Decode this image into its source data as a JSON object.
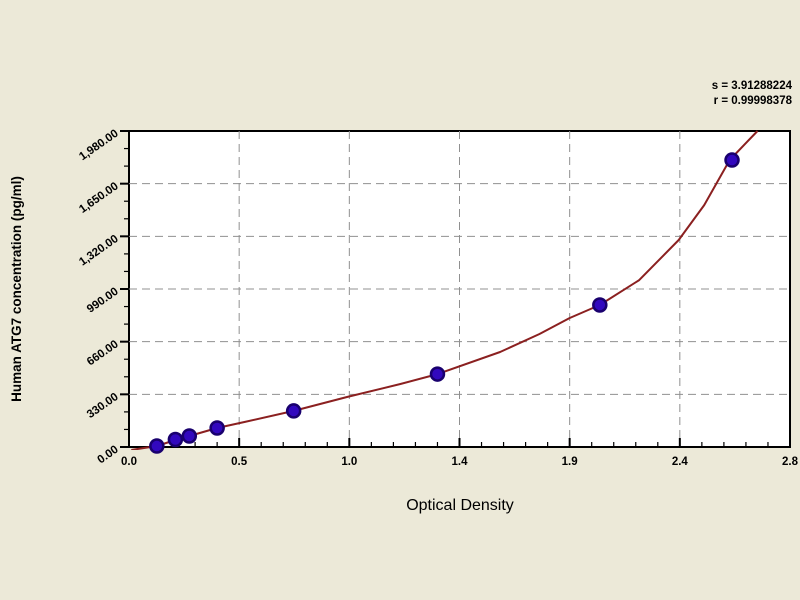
{
  "chart_data": {
    "type": "scatter",
    "title": "",
    "xlabel": "Optical Density",
    "ylabel": "Human ATG7 concentration (pg/ml)",
    "legend": "none",
    "grid": "dashed gray gridlines at every major tick, both axes",
    "stats": {
      "s_label": "s = 3.91288224",
      "r_label": "r = 0.99998378"
    },
    "xlim": [
      0,
      2.85
    ],
    "ylim": [
      0,
      1980
    ],
    "x_major_values": [
      0,
      0.475,
      0.95,
      1.425,
      1.9,
      2.375,
      2.85
    ],
    "x_tick_labels": [
      "0.0",
      "0.5",
      "1.0",
      "1.4",
      "1.9",
      "2.4",
      "2.8"
    ],
    "x_minor_step": 0.095,
    "y_major_values": [
      0,
      330,
      660,
      990,
      1320,
      1650,
      1980
    ],
    "y_tick_labels": [
      "0.00",
      "330.00",
      "660.00",
      "990.00",
      "1,320.00",
      "1,650.00",
      "1,980.00"
    ],
    "y_minor_step": 110,
    "series": [
      {
        "name": "standard-points",
        "type": "scatter",
        "points": [
          {
            "od": 0.12,
            "conc": 6
          },
          {
            "od": 0.2,
            "conc": 47
          },
          {
            "od": 0.26,
            "conc": 69
          },
          {
            "od": 0.38,
            "conc": 119
          },
          {
            "od": 0.71,
            "conc": 226
          },
          {
            "od": 1.33,
            "conc": 457
          },
          {
            "od": 2.03,
            "conc": 890
          },
          {
            "od": 2.6,
            "conc": 1798
          }
        ]
      },
      {
        "name": "fitted-curve",
        "type": "line",
        "points": [
          [
            0.01,
            -19
          ],
          [
            0.12,
            6
          ],
          [
            0.2,
            44
          ],
          [
            0.26,
            69
          ],
          [
            0.38,
            119
          ],
          [
            0.5,
            157
          ],
          [
            0.71,
            226
          ],
          [
            0.94,
            313
          ],
          [
            1.17,
            395
          ],
          [
            1.33,
            457
          ],
          [
            1.6,
            595
          ],
          [
            1.77,
            708
          ],
          [
            1.9,
            808
          ],
          [
            2.03,
            890
          ],
          [
            2.2,
            1046
          ],
          [
            2.37,
            1297
          ],
          [
            2.48,
            1516
          ],
          [
            2.59,
            1798
          ],
          [
            2.66,
            1904
          ],
          [
            2.71,
            1980
          ]
        ]
      }
    ],
    "colors": {
      "background": "#ece9d8",
      "plot_background": "#ffffff",
      "axis": "#000000",
      "grid": "#909090",
      "curve": "#8b2020",
      "marker_fill": "#3208be",
      "marker_outline": "#19006e",
      "text": "#000000"
    }
  }
}
